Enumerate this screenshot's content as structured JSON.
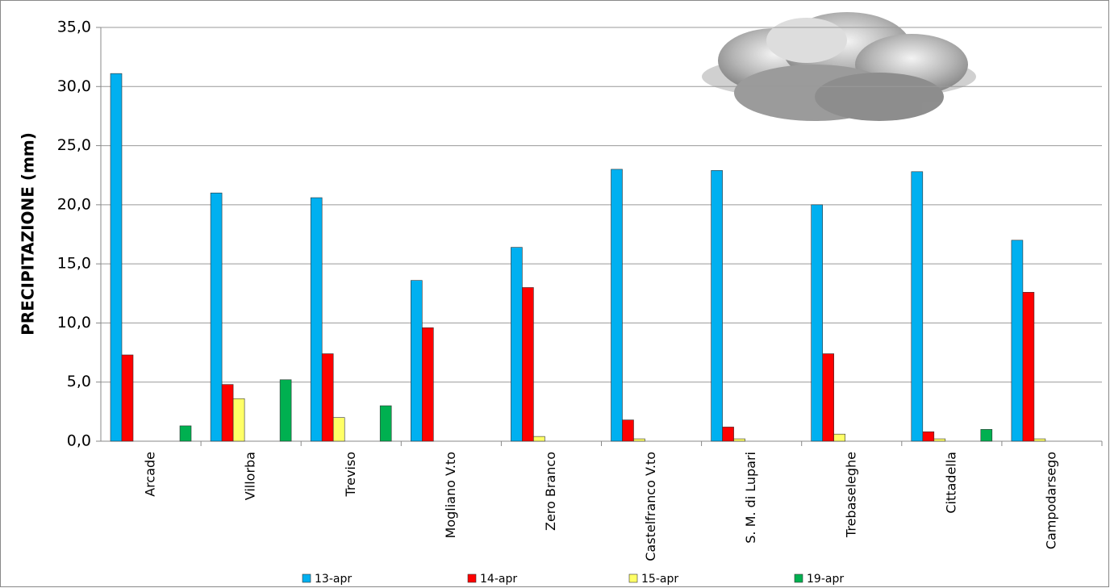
{
  "chart_data": {
    "type": "bar",
    "y_label": "PRECIPITAZIONE (mm)",
    "categories": [
      "Arcade",
      "Villorba",
      "Treviso",
      "Mogliano V.to",
      "Zero Branco",
      "Castelfranco V.to",
      "S. M. di Lupari",
      "Trebaseleghe",
      "Cittadella",
      "Campodarsego"
    ],
    "series": [
      {
        "name": "13-apr",
        "color": "#00b0f0",
        "values": [
          31.1,
          21.0,
          20.6,
          13.6,
          16.4,
          23.0,
          22.9,
          20.0,
          22.8,
          17.0
        ]
      },
      {
        "name": "14-apr",
        "color": "#ff0000",
        "values": [
          7.3,
          4.8,
          7.4,
          9.6,
          13.0,
          1.8,
          1.2,
          7.4,
          0.8,
          12.6
        ]
      },
      {
        "name": "15-apr",
        "color": "#ffff66",
        "values": [
          0,
          3.6,
          2.0,
          0,
          0.4,
          0.2,
          0.2,
          0.6,
          0.2,
          0.2
        ]
      },
      {
        "name": "19-apr",
        "color": "#00b050",
        "values": [
          1.3,
          5.2,
          3.0,
          0,
          0,
          0,
          0,
          0,
          1.0,
          0
        ]
      }
    ],
    "ylim": [
      0,
      35
    ],
    "yticks": [
      {
        "value": 0,
        "label": "0,0"
      },
      {
        "value": 5,
        "label": "5,0"
      },
      {
        "value": 10,
        "label": "10,0"
      },
      {
        "value": 15,
        "label": "15,0"
      },
      {
        "value": 20,
        "label": "20,0"
      },
      {
        "value": 25,
        "label": "25,0"
      },
      {
        "value": 30,
        "label": "30,0"
      },
      {
        "value": 35,
        "label": "35,0"
      }
    ],
    "grid": true,
    "legend": "bottom"
  }
}
